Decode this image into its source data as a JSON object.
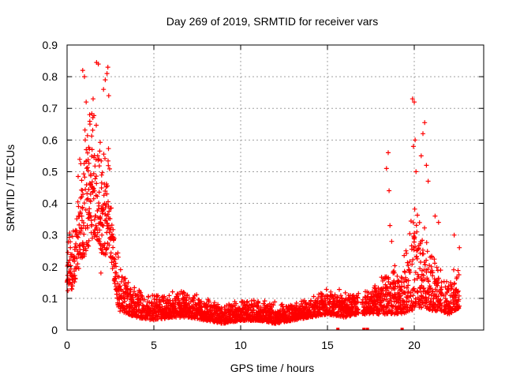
{
  "chart_data": {
    "type": "scatter",
    "title": "Day 269 of 2019, SRMTID for receiver vars",
    "xlabel": "GPS time / hours",
    "ylabel": "SRMTID / TECUs",
    "xlim": [
      0,
      24
    ],
    "ylim": [
      0,
      0.9
    ],
    "xticks": [
      0,
      5,
      10,
      15,
      20
    ],
    "xtick_labels": [
      "0",
      "5",
      "10",
      "15",
      "20"
    ],
    "yticks": [
      0,
      0.1,
      0.2,
      0.3,
      0.4,
      0.5,
      0.6,
      0.7,
      0.8,
      0.9
    ],
    "ytick_labels": [
      "0",
      "0.1",
      "0.2",
      "0.3",
      "0.4",
      "0.5",
      "0.6",
      "0.7",
      "0.8",
      "0.9"
    ],
    "grid": true,
    "marker": "+",
    "color": "#ff0000",
    "series": [
      {
        "name": "SRMTID",
        "envelope": [
          {
            "x": 0.0,
            "lo": 0.12,
            "hi": 0.3
          },
          {
            "x": 0.3,
            "lo": 0.13,
            "hi": 0.34
          },
          {
            "x": 0.6,
            "lo": 0.18,
            "hi": 0.5
          },
          {
            "x": 0.9,
            "lo": 0.22,
            "hi": 0.62
          },
          {
            "x": 1.2,
            "lo": 0.26,
            "hi": 0.7
          },
          {
            "x": 1.5,
            "lo": 0.3,
            "hi": 0.72
          },
          {
            "x": 1.8,
            "lo": 0.28,
            "hi": 0.68
          },
          {
            "x": 2.1,
            "lo": 0.22,
            "hi": 0.62
          },
          {
            "x": 2.4,
            "lo": 0.26,
            "hi": 0.6
          },
          {
            "x": 2.6,
            "lo": 0.2,
            "hi": 0.36
          },
          {
            "x": 2.8,
            "lo": 0.12,
            "hi": 0.3
          },
          {
            "x": 3.0,
            "lo": 0.06,
            "hi": 0.22
          },
          {
            "x": 3.5,
            "lo": 0.05,
            "hi": 0.16
          },
          {
            "x": 4.0,
            "lo": 0.04,
            "hi": 0.14
          },
          {
            "x": 5.0,
            "lo": 0.03,
            "hi": 0.12
          },
          {
            "x": 6.0,
            "lo": 0.04,
            "hi": 0.13
          },
          {
            "x": 7.0,
            "lo": 0.04,
            "hi": 0.13
          },
          {
            "x": 8.0,
            "lo": 0.03,
            "hi": 0.1
          },
          {
            "x": 9.0,
            "lo": 0.02,
            "hi": 0.09
          },
          {
            "x": 10.0,
            "lo": 0.03,
            "hi": 0.1
          },
          {
            "x": 11.0,
            "lo": 0.03,
            "hi": 0.1
          },
          {
            "x": 12.0,
            "lo": 0.02,
            "hi": 0.09
          },
          {
            "x": 13.0,
            "lo": 0.03,
            "hi": 0.09
          },
          {
            "x": 14.0,
            "lo": 0.04,
            "hi": 0.11
          },
          {
            "x": 15.0,
            "lo": 0.05,
            "hi": 0.14
          },
          {
            "x": 16.0,
            "lo": 0.04,
            "hi": 0.13
          },
          {
            "x": 16.7,
            "lo": 0.05,
            "hi": 0.14
          },
          {
            "x": 17.3,
            "lo": 0.05,
            "hi": 0.13
          },
          {
            "x": 18.0,
            "lo": 0.05,
            "hi": 0.17
          },
          {
            "x": 18.6,
            "lo": 0.05,
            "hi": 0.22
          },
          {
            "x": 19.2,
            "lo": 0.05,
            "hi": 0.2
          },
          {
            "x": 19.8,
            "lo": 0.06,
            "hi": 0.36
          },
          {
            "x": 20.2,
            "lo": 0.07,
            "hi": 0.46
          },
          {
            "x": 20.6,
            "lo": 0.07,
            "hi": 0.34
          },
          {
            "x": 21.0,
            "lo": 0.06,
            "hi": 0.26
          },
          {
            "x": 21.5,
            "lo": 0.06,
            "hi": 0.2
          },
          {
            "x": 22.0,
            "lo": 0.05,
            "hi": 0.16
          },
          {
            "x": 22.6,
            "lo": 0.07,
            "hi": 0.25
          }
        ],
        "gaps": [
          [
            16.8,
            17.0
          ],
          [
            21.6,
            21.7
          ]
        ],
        "outliers": [
          {
            "x": 0.9,
            "y": 0.82
          },
          {
            "x": 1.0,
            "y": 0.8
          },
          {
            "x": 1.1,
            "y": 0.72
          },
          {
            "x": 1.3,
            "y": 0.68
          },
          {
            "x": 1.5,
            "y": 0.73
          },
          {
            "x": 1.7,
            "y": 0.845
          },
          {
            "x": 1.8,
            "y": 0.84
          },
          {
            "x": 2.1,
            "y": 0.76
          },
          {
            "x": 2.2,
            "y": 0.79
          },
          {
            "x": 2.3,
            "y": 0.81
          },
          {
            "x": 2.35,
            "y": 0.83
          },
          {
            "x": 2.4,
            "y": 0.74
          },
          {
            "x": 1.95,
            "y": 0.18
          },
          {
            "x": 2.15,
            "y": 0.26
          },
          {
            "x": 1.45,
            "y": 0.29
          },
          {
            "x": 18.4,
            "y": 0.51
          },
          {
            "x": 18.5,
            "y": 0.56
          },
          {
            "x": 18.55,
            "y": 0.44
          },
          {
            "x": 18.6,
            "y": 0.33
          },
          {
            "x": 18.7,
            "y": 0.28
          },
          {
            "x": 19.9,
            "y": 0.73
          },
          {
            "x": 20.0,
            "y": 0.72
          },
          {
            "x": 20.05,
            "y": 0.6
          },
          {
            "x": 19.95,
            "y": 0.58
          },
          {
            "x": 20.1,
            "y": 0.5
          },
          {
            "x": 20.6,
            "y": 0.655
          },
          {
            "x": 20.5,
            "y": 0.62
          },
          {
            "x": 20.4,
            "y": 0.55
          },
          {
            "x": 20.7,
            "y": 0.52
          },
          {
            "x": 20.8,
            "y": 0.47
          },
          {
            "x": 21.2,
            "y": 0.36
          },
          {
            "x": 21.4,
            "y": 0.34
          },
          {
            "x": 22.3,
            "y": 0.3
          },
          {
            "x": 22.6,
            "y": 0.26
          }
        ],
        "baseline_marks": [
          15.6,
          17.1,
          17.3,
          19.3
        ]
      }
    ]
  }
}
